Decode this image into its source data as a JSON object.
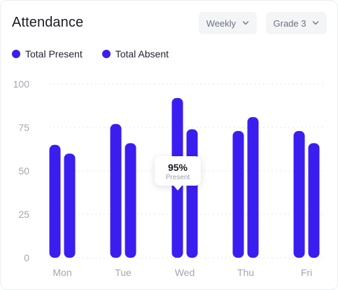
{
  "header": {
    "title": "Attendance",
    "period_select": "Weekly",
    "grade_select": "Grade 3"
  },
  "legend": {
    "present_label": "Total Present",
    "absent_label": "Total Absent"
  },
  "tooltip": {
    "value": "95%",
    "label": "Present"
  },
  "colors": {
    "present": "#3a1ef0",
    "absent": "#3a1ef0",
    "grid": "#e3e5ea",
    "tick_text": "#a3a7b0"
  },
  "chart_data": {
    "type": "bar",
    "categories": [
      "Mon",
      "Tue",
      "Wed",
      "Thu",
      "Fri"
    ],
    "series": [
      {
        "name": "Total Present",
        "values": [
          65,
          77,
          92,
          73,
          73
        ]
      },
      {
        "name": "Total Absent",
        "values": [
          60,
          66,
          74,
          81,
          66
        ]
      }
    ],
    "yticks": [
      0,
      25,
      50,
      75,
      100
    ],
    "ylim": [
      0,
      100
    ],
    "grid": true,
    "legend_position": "top-left"
  }
}
